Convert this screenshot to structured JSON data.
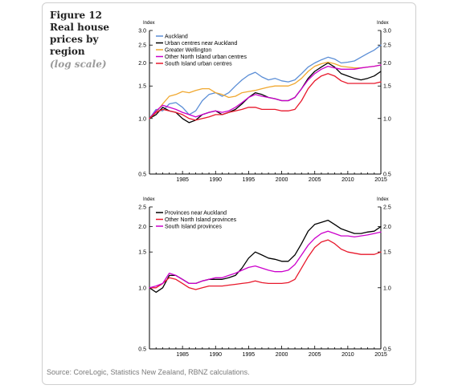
{
  "figure": {
    "title": "Figure 12 Real house prices by region",
    "subtitle": "(log scale)",
    "source": "Source:  CoreLogic, Statistics New Zealand, RBNZ calculations."
  },
  "colors": {
    "auckland": "#5b8ed6",
    "urban_near_auckland": "#000000",
    "greater_wellington": "#f0a830",
    "other_ni_urban": "#cc00cc",
    "si_urban": "#e8192c",
    "provinces_near_auckland": "#000000",
    "other_ni_provinces": "#e8192c",
    "si_provinces": "#cc00cc"
  },
  "chart_data": [
    {
      "type": "line",
      "ylabel": "Index",
      "ylabel_right": "Index",
      "log_scale": true,
      "xlim": [
        1980,
        2015
      ],
      "ylim": [
        0.5,
        3.0
      ],
      "x_ticks": [
        "1985",
        "1990",
        "1995",
        "2000",
        "2005",
        "2010",
        "2015"
      ],
      "y_ticks": [
        "0.5",
        "1.0",
        "1.5",
        "2.0",
        "2.5",
        "3.0"
      ],
      "legend_position": "top-left",
      "x": [
        1980,
        1981,
        1982,
        1983,
        1984,
        1985,
        1986,
        1987,
        1988,
        1989,
        1990,
        1991,
        1992,
        1993,
        1994,
        1995,
        1996,
        1997,
        1998,
        1999,
        2000,
        2001,
        2002,
        2003,
        2004,
        2005,
        2006,
        2007,
        2008,
        2009,
        2010,
        2011,
        2012,
        2013,
        2014,
        2015
      ],
      "series": [
        {
          "name": "Auckland",
          "color_key": "auckland",
          "values": [
            1.0,
            1.12,
            1.1,
            1.2,
            1.22,
            1.15,
            1.05,
            1.1,
            1.25,
            1.35,
            1.38,
            1.32,
            1.38,
            1.5,
            1.62,
            1.72,
            1.78,
            1.68,
            1.62,
            1.65,
            1.6,
            1.58,
            1.62,
            1.75,
            1.9,
            2.0,
            2.08,
            2.15,
            2.1,
            2.0,
            2.02,
            2.05,
            2.15,
            2.25,
            2.35,
            2.5
          ]
        },
        {
          "name": "Urban centres near Auckland",
          "color_key": "urban_near_auckland",
          "values": [
            1.0,
            1.05,
            1.15,
            1.1,
            1.08,
            1.0,
            0.95,
            0.98,
            1.05,
            1.08,
            1.1,
            1.05,
            1.08,
            1.12,
            1.2,
            1.3,
            1.38,
            1.35,
            1.3,
            1.28,
            1.25,
            1.25,
            1.3,
            1.45,
            1.65,
            1.8,
            1.9,
            2.0,
            1.9,
            1.75,
            1.7,
            1.65,
            1.62,
            1.65,
            1.7,
            1.8
          ]
        },
        {
          "name": "Greater Wellington",
          "color_key": "greater_wellington",
          "values": [
            1.0,
            1.08,
            1.2,
            1.32,
            1.35,
            1.4,
            1.38,
            1.42,
            1.45,
            1.45,
            1.38,
            1.35,
            1.3,
            1.32,
            1.38,
            1.4,
            1.42,
            1.45,
            1.48,
            1.5,
            1.5,
            1.5,
            1.55,
            1.65,
            1.8,
            1.92,
            1.98,
            2.02,
            1.98,
            1.92,
            1.9,
            1.88,
            1.88,
            1.9,
            1.92,
            1.95
          ]
        },
        {
          "name": "Other North Island urban centres",
          "color_key": "other_ni_urban",
          "values": [
            1.0,
            1.1,
            1.18,
            1.15,
            1.12,
            1.08,
            1.05,
            1.02,
            1.05,
            1.08,
            1.1,
            1.08,
            1.1,
            1.15,
            1.22,
            1.3,
            1.35,
            1.32,
            1.3,
            1.28,
            1.25,
            1.25,
            1.3,
            1.45,
            1.62,
            1.75,
            1.85,
            1.92,
            1.88,
            1.85,
            1.85,
            1.85,
            1.88,
            1.9,
            1.92,
            1.95
          ]
        },
        {
          "name": "South Island urban centres",
          "color_key": "si_urban",
          "values": [
            1.0,
            1.08,
            1.12,
            1.1,
            1.08,
            1.05,
            1.0,
            0.98,
            1.0,
            1.02,
            1.05,
            1.05,
            1.08,
            1.1,
            1.12,
            1.15,
            1.15,
            1.12,
            1.12,
            1.12,
            1.1,
            1.1,
            1.12,
            1.25,
            1.45,
            1.6,
            1.7,
            1.75,
            1.7,
            1.6,
            1.55,
            1.55,
            1.55,
            1.55,
            1.55,
            1.58
          ]
        }
      ]
    },
    {
      "type": "line",
      "ylabel": "Index",
      "ylabel_right": "Index",
      "log_scale": true,
      "xlim": [
        1980,
        2015
      ],
      "ylim": [
        0.5,
        2.5
      ],
      "x_ticks": [
        "1985",
        "1990",
        "1995",
        "2000",
        "2005",
        "2010",
        "2015"
      ],
      "y_ticks": [
        "0.5",
        "1.0",
        "1.5",
        "2.0",
        "2.5"
      ],
      "legend_position": "top-left",
      "x": [
        1980,
        1981,
        1982,
        1983,
        1984,
        1985,
        1986,
        1987,
        1988,
        1989,
        1990,
        1991,
        1992,
        1993,
        1994,
        1995,
        1996,
        1997,
        1998,
        1999,
        2000,
        2001,
        2002,
        2003,
        2004,
        2005,
        2006,
        2007,
        2008,
        2009,
        2010,
        2011,
        2012,
        2013,
        2014,
        2015
      ],
      "series": [
        {
          "name": "Provinces near Auckland",
          "color_key": "provinces_near_auckland",
          "values": [
            1.0,
            0.95,
            1.0,
            1.15,
            1.15,
            1.1,
            1.05,
            1.05,
            1.08,
            1.1,
            1.1,
            1.1,
            1.12,
            1.15,
            1.25,
            1.4,
            1.5,
            1.45,
            1.4,
            1.38,
            1.35,
            1.35,
            1.45,
            1.65,
            1.9,
            2.05,
            2.1,
            2.15,
            2.05,
            1.95,
            1.9,
            1.85,
            1.85,
            1.88,
            1.9,
            2.0
          ]
        },
        {
          "name": "Other North Island provinces",
          "color_key": "other_ni_provinces",
          "values": [
            1.0,
            1.0,
            1.05,
            1.12,
            1.1,
            1.05,
            1.0,
            0.98,
            1.0,
            1.02,
            1.02,
            1.02,
            1.03,
            1.04,
            1.05,
            1.06,
            1.08,
            1.06,
            1.05,
            1.05,
            1.05,
            1.06,
            1.1,
            1.25,
            1.42,
            1.58,
            1.68,
            1.72,
            1.65,
            1.55,
            1.5,
            1.48,
            1.46,
            1.46,
            1.46,
            1.5
          ]
        },
        {
          "name": "South Island provinces",
          "color_key": "si_provinces",
          "values": [
            1.0,
            1.02,
            1.05,
            1.18,
            1.15,
            1.1,
            1.05,
            1.05,
            1.08,
            1.1,
            1.12,
            1.12,
            1.15,
            1.18,
            1.22,
            1.26,
            1.28,
            1.25,
            1.22,
            1.2,
            1.2,
            1.22,
            1.3,
            1.45,
            1.62,
            1.75,
            1.85,
            1.9,
            1.85,
            1.8,
            1.8,
            1.78,
            1.8,
            1.82,
            1.85,
            1.88
          ]
        }
      ]
    }
  ]
}
